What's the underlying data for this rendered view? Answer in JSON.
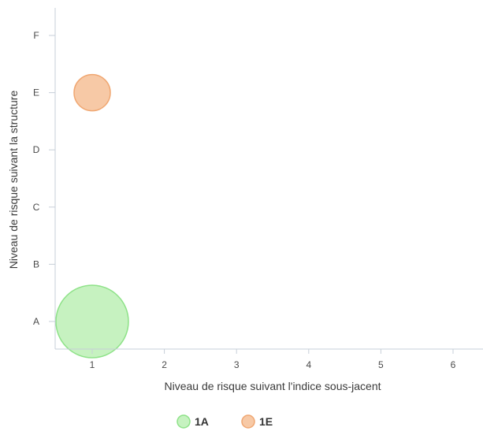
{
  "chart_data": {
    "type": "scatter",
    "title": "",
    "xlabel": "Niveau de risque suivant l'indice sous-jacent",
    "ylabel": "Niveau de risque suivant la structure",
    "x_ticks": [
      "1",
      "2",
      "3",
      "4",
      "5",
      "6"
    ],
    "y_categories": [
      "A",
      "B",
      "C",
      "D",
      "E",
      "F"
    ],
    "xlim": [
      0.5,
      6.5
    ],
    "grid": false,
    "legend_position": "bottom-center",
    "series": [
      {
        "name": "1A",
        "color_fill": "#c6f2c0",
        "color_stroke": "#8ee288",
        "points": [
          {
            "x": 1,
            "y": "A",
            "size": 4
          }
        ]
      },
      {
        "name": "1E",
        "color_fill": "#f7c9a6",
        "color_stroke": "#f0a772",
        "points": [
          {
            "x": 1,
            "y": "E",
            "size": 1
          }
        ]
      }
    ]
  }
}
